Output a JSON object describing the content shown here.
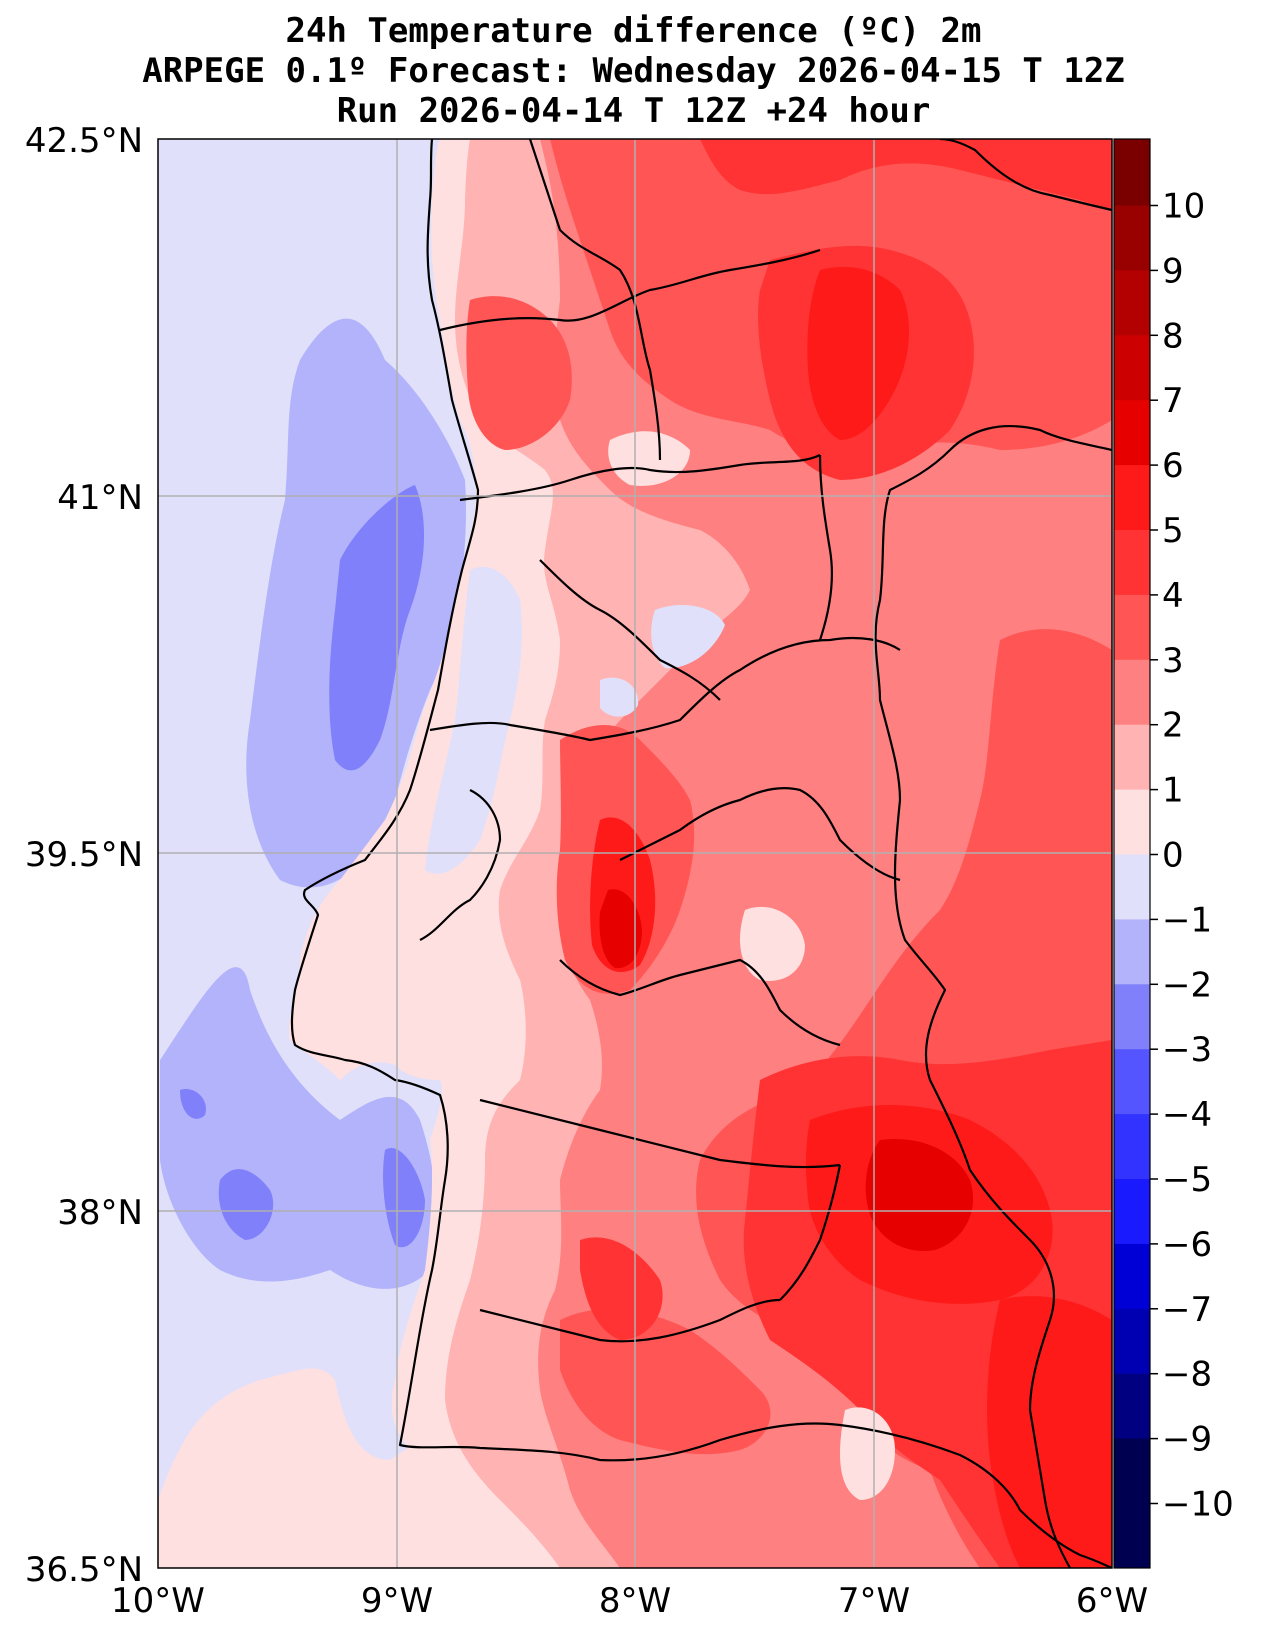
{
  "title": {
    "line1": "24h Temperature difference (ºC) 2m",
    "line2": "ARPEGE 0.1º Forecast: Wednesday 2026-04-15 T 12Z",
    "line3": "Run 2026-04-14 T 12Z +24 hour"
  },
  "map": {
    "lon_range": [
      -10,
      -6
    ],
    "lat_range": [
      36.5,
      42.5
    ],
    "x_ticks": [
      "10°W",
      "9°W",
      "8°W",
      "7°W",
      "6°W"
    ],
    "y_ticks": [
      "42.5°N",
      "41°N",
      "39.5°N",
      "38°N",
      "36.5°N"
    ],
    "grid": true,
    "region": "Portugal"
  },
  "colorbar": {
    "levels": [
      10,
      9,
      8,
      7,
      6,
      5,
      4,
      3,
      2,
      1,
      0,
      -1,
      -2,
      -3,
      -4,
      -5,
      -6,
      -7,
      -8,
      -9,
      -10
    ],
    "labels": [
      "10",
      "9",
      "8",
      "7",
      "6",
      "5",
      "4",
      "3",
      "2",
      "1",
      "0",
      "−1",
      "−2",
      "−3",
      "−4",
      "−5",
      "−6",
      "−7",
      "−8",
      "−9",
      "−10"
    ],
    "colors_top_to_bottom": [
      "#7a0000",
      "#990000",
      "#b30000",
      "#cc0000",
      "#e60000",
      "#ff1a1a",
      "#ff3333",
      "#ff5555",
      "#ff8080",
      "#ffb3b3",
      "#ffe0e0",
      "#e0e0fb",
      "#b3b3fb",
      "#8080fb",
      "#5555ff",
      "#3333ff",
      "#1a1aff",
      "#0000d6",
      "#0000b3",
      "#000080",
      "#000050"
    ]
  },
  "colors": {
    "ocean_neg": "#e0e0fb",
    "cool_1": "#b3b3fb",
    "cool_2": "#8080fb",
    "warm_0": "#ffe0e0",
    "warm_1": "#ffb3b3",
    "warm_2": "#ff8080",
    "warm_3": "#ff5555",
    "warm_4": "#ff3333",
    "warm_5": "#ff1a1a",
    "warm_6": "#e60000"
  }
}
